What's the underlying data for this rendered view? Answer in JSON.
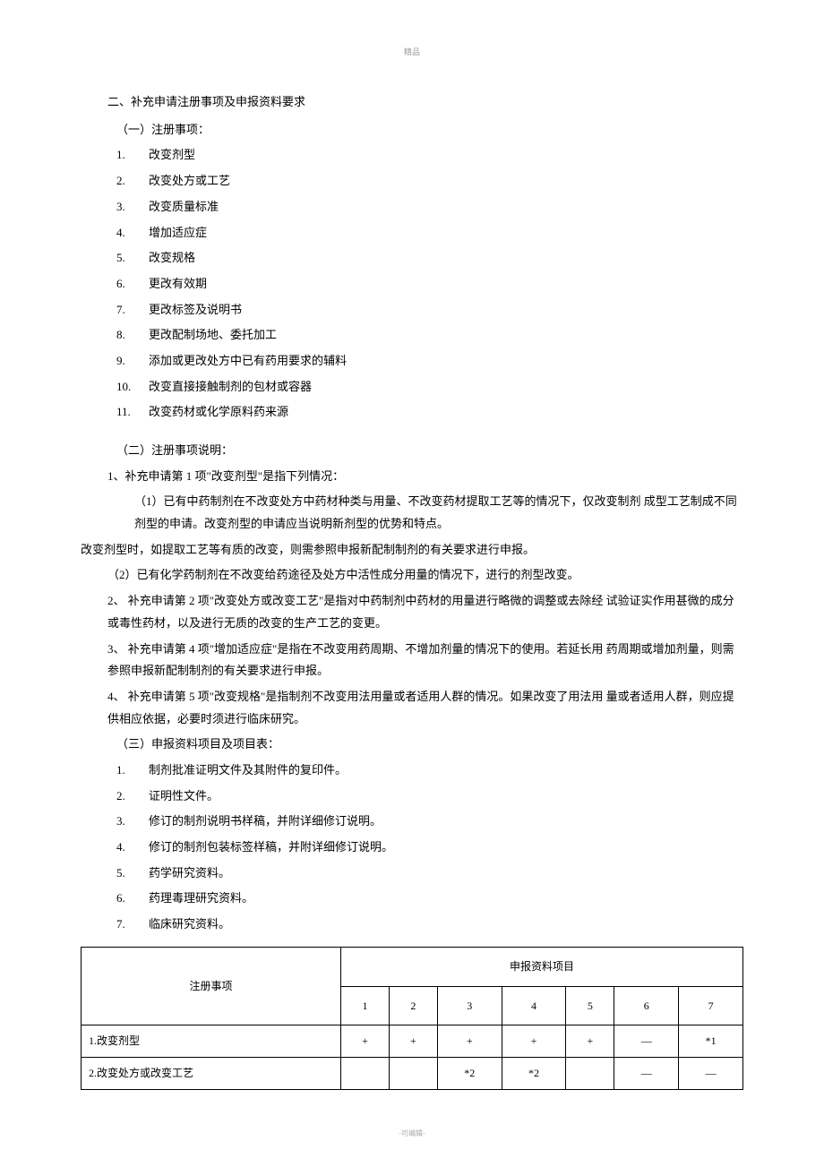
{
  "header_mark": "精品",
  "footer_mark": "-可编辑-",
  "section_title": "二、补充申请注册事项及申报资料要求",
  "subsection1": {
    "heading": "（一）注册事项：",
    "items": [
      {
        "num": "1.",
        "text": "改变剂型"
      },
      {
        "num": "2.",
        "text": "改变处方或工艺"
      },
      {
        "num": "3.",
        "text": "改变质量标准"
      },
      {
        "num": "4.",
        "text": "增加适应症"
      },
      {
        "num": "5.",
        "text": "改变规格"
      },
      {
        "num": "6.",
        "text": "更改有效期"
      },
      {
        "num": "7.",
        "text": "更改标签及说明书"
      },
      {
        "num": "8.",
        "text": "更改配制场地、委托加工"
      },
      {
        "num": "9.",
        "text": "添加或更改处方中已有药用要求的辅料"
      },
      {
        "num": "10.",
        "text": "改变直接接触制剂的包材或容器"
      },
      {
        "num": "11.",
        "text": "改变药材或化学原料药来源"
      }
    ]
  },
  "subsection2": {
    "heading": "（二）注册事项说明：",
    "paras": [
      {
        "cls": "indent2",
        "text": "1、补充申请第 1 项\"改变剂型\"是指下列情况："
      },
      {
        "cls": "indent1",
        "text": "（1）已有中药制剂在不改变处方中药材种类与用量、不改变药材提取工艺等的情况下，仅改变制剂  成型工艺制成不同剂型的申请。改变剂型的申请应当说明新剂型的优势和特点。"
      },
      {
        "cls": "indent3",
        "text": "改变剂型时，如提取工艺等有质的改变，则需参照申报新配制制剂的有关要求进行申报。"
      },
      {
        "cls": "indent2",
        "text": "（2）已有化学药制剂在不改变给药途径及处方中活性成分用量的情况下，进行的剂型改变。"
      },
      {
        "cls": "indent2",
        "text": "2、  补充申请第 2 项\"改变处方或改变工艺\"是指对中药制剂中药材的用量进行略微的调整或去除经  试验证实作用甚微的成分或毒性药材，以及进行无质的改变的生产工艺的变更。"
      },
      {
        "cls": "indent2",
        "text": "3、  补充申请第 4 项\"增加适应症\"是指在不改变用药周期、不增加剂量的情况下的使用。若延长用  药周期或增加剂量，则需参照申报新配制制剂的有关要求进行申报。"
      },
      {
        "cls": "indent2",
        "text": "4、  补充申请第 5 项\"改变规格\"是指制剂不改变用法用量或者适用人群的情况。如果改变了用法用  量或者适用人群，则应提供相应依据，必要时须进行临床研究。"
      }
    ]
  },
  "subsection3": {
    "heading": "（三）申报资料项目及项目表：",
    "items": [
      {
        "num": "1.",
        "text": "制剂批准证明文件及其附件的复印件。"
      },
      {
        "num": "2.",
        "text": "证明性文件。"
      },
      {
        "num": "3.",
        "text": "修订的制剂说明书样稿，并附详细修订说明。"
      },
      {
        "num": "4.",
        "text": "修订的制剂包装标签样稿，并附详细修订说明。"
      },
      {
        "num": "5.",
        "text": "药学研究资料。"
      },
      {
        "num": "6.",
        "text": "药理毒理研究资料。"
      },
      {
        "num": "7.",
        "text": "临床研究资料。"
      }
    ]
  },
  "table": {
    "header_item": "注册事项",
    "header_merged": "申报资料项目",
    "col_headers": [
      "1",
      "2",
      "3",
      "4",
      "5",
      "6",
      "7"
    ],
    "rows": [
      {
        "label": "1.改变剂型",
        "cells": [
          "+",
          "+",
          "+",
          "+",
          "+",
          "—",
          "*1"
        ]
      },
      {
        "label": "2.改变处方或改变工艺",
        "cells": [
          "",
          "",
          "*2",
          "*2",
          "",
          "—",
          "—"
        ]
      }
    ]
  }
}
